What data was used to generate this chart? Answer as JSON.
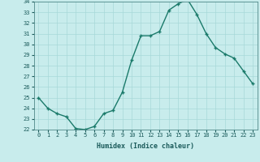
{
  "x": [
    0,
    1,
    2,
    3,
    4,
    5,
    6,
    7,
    8,
    9,
    10,
    11,
    12,
    13,
    14,
    15,
    16,
    17,
    18,
    19,
    20,
    21,
    22,
    23
  ],
  "y": [
    25.0,
    24.0,
    23.5,
    23.2,
    22.1,
    22.0,
    22.3,
    23.5,
    23.8,
    25.5,
    28.5,
    30.8,
    30.8,
    31.2,
    33.2,
    33.8,
    34.2,
    32.8,
    31.0,
    29.7,
    29.1,
    28.7,
    27.5,
    26.3
  ],
  "line_color": "#1a7a6a",
  "marker": "+",
  "marker_size": 3,
  "marker_lw": 1.0,
  "line_width": 1.0,
  "bg_color": "#c8ecec",
  "grid_color": "#a8d8d8",
  "xlabel": "Humidex (Indice chaleur)",
  "xlabel_fontsize": 6.0,
  "tick_fontsize": 5.0,
  "tick_color": "#1a5a5a",
  "ylim": [
    22,
    34
  ],
  "xlim": [
    -0.5,
    23.5
  ],
  "yticks": [
    22,
    23,
    24,
    25,
    26,
    27,
    28,
    29,
    30,
    31,
    32,
    33,
    34
  ],
  "xticks": [
    0,
    1,
    2,
    3,
    4,
    5,
    6,
    7,
    8,
    9,
    10,
    11,
    12,
    13,
    14,
    15,
    16,
    17,
    18,
    19,
    20,
    21,
    22,
    23
  ]
}
